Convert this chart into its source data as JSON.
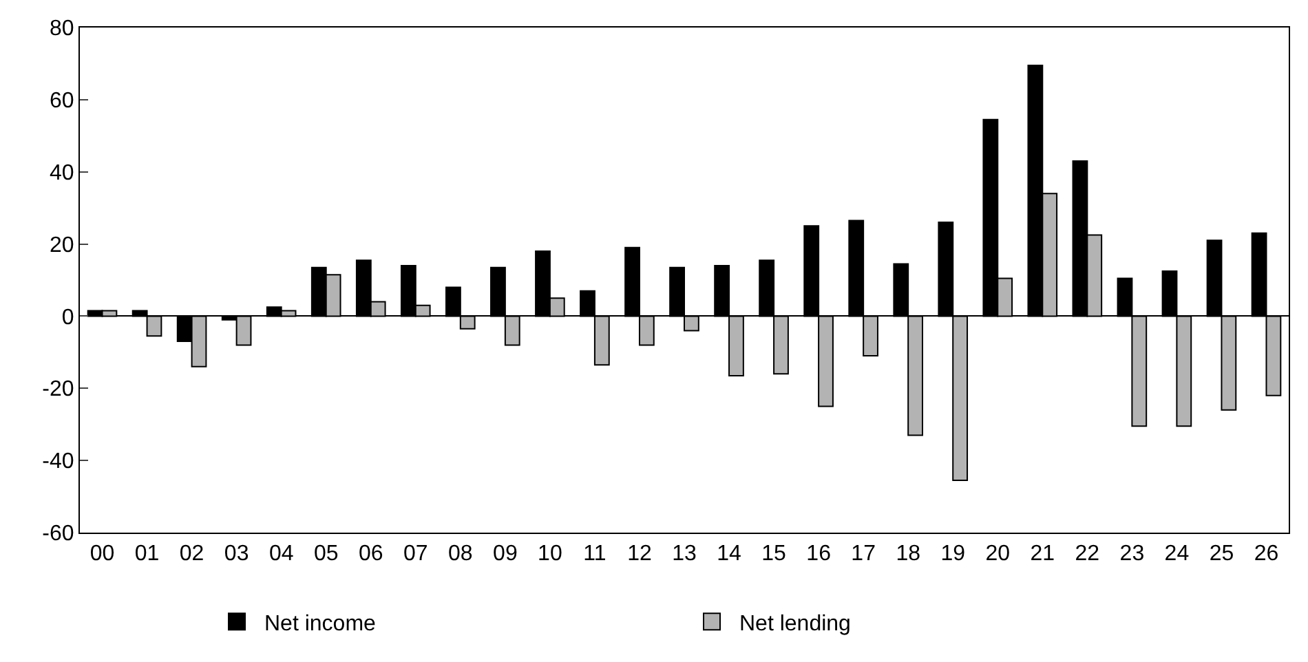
{
  "chart_data": {
    "type": "bar",
    "categories": [
      "00",
      "01",
      "02",
      "03",
      "04",
      "05",
      "06",
      "07",
      "08",
      "09",
      "10",
      "11",
      "12",
      "13",
      "14",
      "15",
      "16",
      "17",
      "18",
      "19",
      "20",
      "21",
      "22",
      "23",
      "24",
      "25",
      "26"
    ],
    "series": [
      {
        "name": "Net income",
        "color": "#000000",
        "values": [
          1.5,
          1.5,
          -7,
          -1,
          2.5,
          13.5,
          15.5,
          14,
          8,
          13.5,
          18,
          7,
          19,
          13.5,
          14,
          15.5,
          25,
          26.5,
          14.5,
          26,
          54.5,
          69.5,
          43,
          10.5,
          12.5,
          21,
          23
        ]
      },
      {
        "name": "Net lending",
        "color": "#b3b3b3",
        "values": [
          1.5,
          -5.5,
          -14,
          -8,
          1.5,
          11.5,
          4,
          3,
          -3.5,
          -8,
          5,
          -13.5,
          -8,
          -4,
          -16.5,
          -16,
          -25,
          -11,
          -33,
          -45.5,
          10.5,
          34,
          22.5,
          -30.5,
          -30.5,
          -26,
          -22
        ]
      }
    ],
    "ylim": [
      -60,
      80
    ],
    "yticks": [
      -60,
      -40,
      -20,
      0,
      20,
      40,
      60,
      80
    ],
    "legend": "bottom"
  }
}
